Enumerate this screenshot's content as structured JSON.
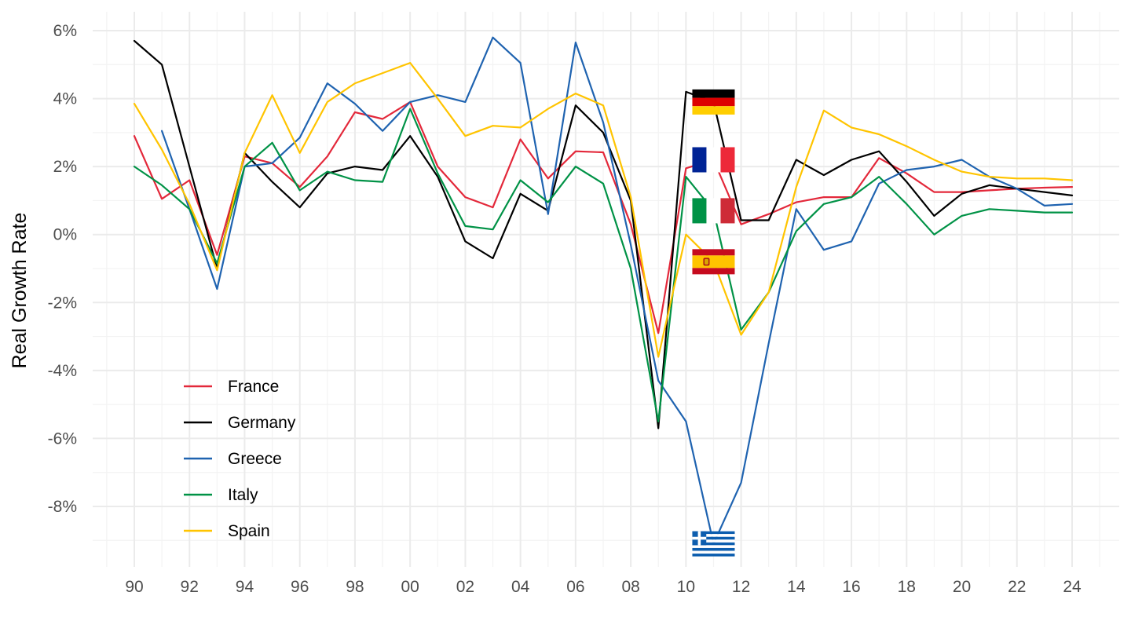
{
  "chart_data": {
    "type": "line",
    "title": "",
    "xlabel": "",
    "ylabel": "Real Growth Rate",
    "x": [
      1990,
      1991,
      1992,
      1993,
      1994,
      1995,
      1996,
      1997,
      1998,
      1999,
      2000,
      2001,
      2002,
      2003,
      2004,
      2005,
      2006,
      2007,
      2008,
      2009,
      2010,
      2011,
      2012,
      2013,
      2014,
      2015,
      2016,
      2017,
      2018,
      2019,
      2020,
      2021,
      2022,
      2023,
      2024
    ],
    "x_ticks": [
      1990,
      1992,
      1994,
      1996,
      1998,
      2000,
      2002,
      2004,
      2006,
      2008,
      2010,
      2012,
      2014,
      2016,
      2018,
      2020,
      2022,
      2024
    ],
    "x_tick_labels": [
      "90",
      "92",
      "94",
      "96",
      "98",
      "00",
      "02",
      "04",
      "06",
      "08",
      "10",
      "12",
      "14",
      "16",
      "18",
      "20",
      "22",
      "24"
    ],
    "y_ticks": [
      6,
      4,
      2,
      0,
      -2,
      -4,
      -6,
      -8
    ],
    "y_tick_labels": [
      "6%",
      "4%",
      "2%",
      "0%",
      "-2%",
      "-4%",
      "-6%",
      "-8%"
    ],
    "xlim": [
      1989,
      2025
    ],
    "ylim": [
      -9.9,
      6.6
    ],
    "grid": true,
    "legend_position": "bottom-left",
    "series": [
      {
        "name": "France",
        "color": "#E3283A",
        "flag": "france-flag",
        "values": [
          2.9,
          1.05,
          1.6,
          -0.6,
          2.3,
          2.1,
          1.4,
          2.3,
          3.6,
          3.4,
          3.9,
          2.0,
          1.1,
          0.8,
          2.8,
          1.65,
          2.45,
          2.42,
          0.3,
          -2.9,
          1.95,
          2.2,
          0.3,
          0.6,
          0.95,
          1.1,
          1.1,
          2.25,
          1.8,
          1.25,
          1.25,
          1.3,
          1.35,
          1.38,
          1.4
        ]
      },
      {
        "name": "Germany",
        "color": "#000000",
        "flag": "germany-flag",
        "values": [
          5.7,
          5.0,
          2.0,
          -1.0,
          2.4,
          1.55,
          0.8,
          1.8,
          2.0,
          1.9,
          2.9,
          1.7,
          -0.2,
          -0.7,
          1.2,
          0.7,
          3.8,
          3.0,
          1.0,
          -5.7,
          4.2,
          3.9,
          0.42,
          0.42,
          2.2,
          1.75,
          2.2,
          2.45,
          1.55,
          0.55,
          1.2,
          1.45,
          1.35,
          1.25,
          1.15
        ]
      },
      {
        "name": "Greece",
        "color": "#1F63B0",
        "flag": "greece-flag",
        "values": [
          null,
          3.05,
          0.75,
          -1.6,
          2.0,
          2.1,
          2.85,
          4.45,
          3.85,
          3.05,
          3.9,
          4.1,
          3.9,
          5.8,
          5.05,
          0.6,
          5.65,
          3.3,
          -0.3,
          -4.3,
          -5.5,
          -9.1,
          -7.3,
          -3.2,
          0.75,
          -0.45,
          -0.2,
          1.5,
          1.9,
          2.0,
          2.2,
          1.7,
          1.35,
          0.85,
          0.9
        ]
      },
      {
        "name": "Italy",
        "color": "#009246",
        "flag": "italy-flag",
        "values": [
          2.0,
          1.45,
          0.75,
          -0.85,
          2.0,
          2.7,
          1.3,
          1.85,
          1.6,
          1.55,
          3.7,
          1.8,
          0.25,
          0.15,
          1.6,
          0.95,
          2.0,
          1.5,
          -1.0,
          -5.5,
          1.7,
          0.7,
          -2.8,
          -1.7,
          0.1,
          0.9,
          1.1,
          1.7,
          0.9,
          0.0,
          0.55,
          0.75,
          0.7,
          0.65,
          0.65
        ]
      },
      {
        "name": "Spain",
        "color": "#FFC400",
        "flag": "spain-flag",
        "values": [
          3.85,
          2.5,
          0.9,
          -1.05,
          2.4,
          4.1,
          2.4,
          3.9,
          4.45,
          4.75,
          5.05,
          4.0,
          2.9,
          3.2,
          3.15,
          3.7,
          4.15,
          3.8,
          1.1,
          -3.6,
          0.0,
          -0.8,
          -2.95,
          -1.7,
          1.4,
          3.65,
          3.15,
          2.95,
          2.6,
          2.2,
          1.85,
          1.7,
          1.65,
          1.65,
          1.6
        ]
      }
    ]
  }
}
